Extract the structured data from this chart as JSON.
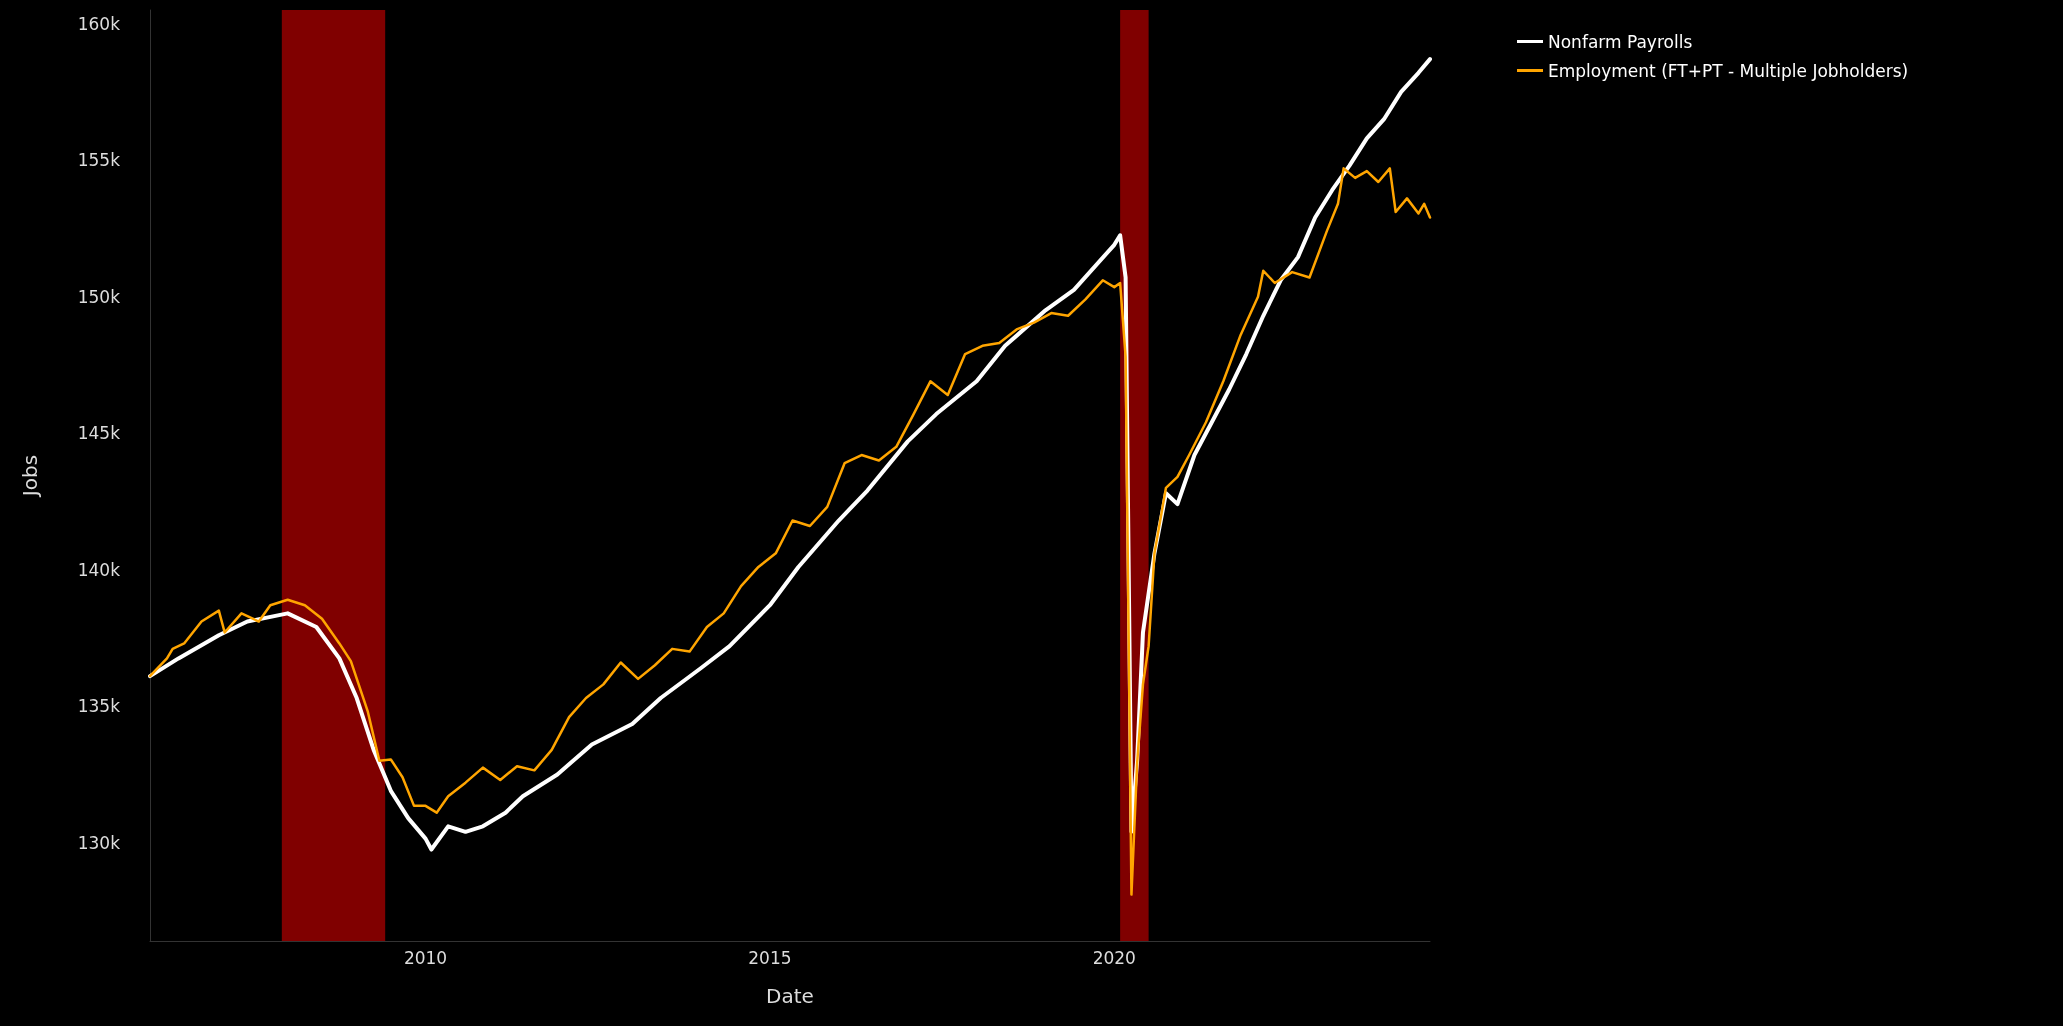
{
  "chart_data": {
    "type": "line",
    "xlabel": "Date",
    "ylabel": "Jobs",
    "xlim": [
      "2006-01",
      "2024-08"
    ],
    "xticks": [
      "2010",
      "2015",
      "2020"
    ],
    "ylim": [
      126400,
      160500
    ],
    "yticks": [
      {
        "value": 130000,
        "label": "130k"
      },
      {
        "value": 135000,
        "label": "135k"
      },
      {
        "value": 140000,
        "label": "140k"
      },
      {
        "value": 145000,
        "label": "145k"
      },
      {
        "value": 150000,
        "label": "150k"
      },
      {
        "value": 155000,
        "label": "155k"
      },
      {
        "value": 160000,
        "label": "160k"
      }
    ],
    "grid": false,
    "legend": "top right",
    "marker": "none",
    "line_style": "solid",
    "bands": [
      {
        "axis": "x",
        "from": "2007-12",
        "to": "2009-06",
        "color": "#800000"
      },
      {
        "axis": "x",
        "from": "2020-02",
        "to": "2020-07",
        "color": "#800000"
      }
    ],
    "series": [
      {
        "name": "Nonfarm Payrolls",
        "color": "#ffffff",
        "x": [
          "2006-01",
          "2006-06",
          "2007-01",
          "2007-06",
          "2008-01",
          "2008-06",
          "2008-10",
          "2009-01",
          "2009-04",
          "2009-07",
          "2009-10",
          "2010-01",
          "2010-02",
          "2010-05",
          "2010-08",
          "2010-11",
          "2011-03",
          "2011-06",
          "2011-12",
          "2012-06",
          "2013-01",
          "2013-06",
          "2014-01",
          "2014-06",
          "2015-01",
          "2015-06",
          "2016-01",
          "2016-06",
          "2017-01",
          "2017-06",
          "2018-01",
          "2018-06",
          "2019-01",
          "2019-06",
          "2020-01",
          "2020-02",
          "2020-03",
          "2020-04",
          "2020-05",
          "2020-06",
          "2020-08",
          "2020-10",
          "2020-12",
          "2021-03",
          "2021-06",
          "2021-09",
          "2021-12",
          "2022-03",
          "2022-06",
          "2022-09",
          "2022-12",
          "2023-03",
          "2023-06",
          "2023-09",
          "2023-12",
          "2024-03",
          "2024-06",
          "2024-08"
        ],
        "values": [
          136100,
          136750,
          137600,
          138100,
          138400,
          137900,
          136750,
          135300,
          133400,
          131900,
          130900,
          130150,
          129750,
          130600,
          130400,
          130600,
          131100,
          131700,
          132500,
          133600,
          134350,
          135300,
          136400,
          137200,
          138700,
          140100,
          141800,
          142900,
          144700,
          145700,
          146900,
          148200,
          149500,
          150250,
          151900,
          152250,
          150700,
          130400,
          133000,
          137700,
          140600,
          142800,
          142400,
          144200,
          145400,
          146600,
          147900,
          149300,
          150600,
          151450,
          152900,
          153900,
          154800,
          155800,
          156500,
          157500,
          158200,
          158700
        ]
      },
      {
        "name": "Employment (FT+PT - Multiple Jobholders)",
        "color": "#ffa500",
        "x": [
          "2006-01",
          "2006-04",
          "2006-05",
          "2006-07",
          "2006-10",
          "2007-01",
          "2007-02",
          "2007-05",
          "2007-08",
          "2007-10",
          "2008-01",
          "2008-04",
          "2008-07",
          "2008-10",
          "2008-12",
          "2009-03",
          "2009-05",
          "2009-07",
          "2009-09",
          "2009-11",
          "2010-01",
          "2010-03",
          "2010-05",
          "2010-08",
          "2010-11",
          "2011-02",
          "2011-05",
          "2011-08",
          "2011-11",
          "2012-02",
          "2012-05",
          "2012-08",
          "2012-11",
          "2013-02",
          "2013-05",
          "2013-08",
          "2013-11",
          "2014-02",
          "2014-05",
          "2014-08",
          "2014-11",
          "2015-02",
          "2015-05",
          "2015-08",
          "2015-11",
          "2016-02",
          "2016-05",
          "2016-08",
          "2016-11",
          "2017-02",
          "2017-05",
          "2017-08",
          "2017-11",
          "2018-02",
          "2018-05",
          "2018-08",
          "2018-11",
          "2019-02",
          "2019-05",
          "2019-08",
          "2019-11",
          "2020-01",
          "2020-02",
          "2020-03",
          "2020-04",
          "2020-05",
          "2020-06",
          "2020-07",
          "2020-08",
          "2020-10",
          "2020-12",
          "2021-02",
          "2021-05",
          "2021-08",
          "2021-11",
          "2022-02",
          "2022-03",
          "2022-05",
          "2022-08",
          "2022-11",
          "2023-02",
          "2023-04",
          "2023-05",
          "2023-07",
          "2023-09",
          "2023-11",
          "2024-01",
          "2024-02",
          "2024-04",
          "2024-06",
          "2024-07",
          "2024-08"
        ],
        "values": [
          136100,
          136750,
          137100,
          137300,
          138100,
          138500,
          137700,
          138400,
          138100,
          138700,
          138900,
          138700,
          138200,
          137300,
          136650,
          134800,
          133000,
          133050,
          132400,
          131350,
          131350,
          131100,
          131700,
          132200,
          132750,
          132300,
          132800,
          132650,
          133400,
          134600,
          135300,
          135800,
          136600,
          136000,
          136500,
          137100,
          137000,
          137900,
          138400,
          139400,
          140100,
          140600,
          141800,
          141600,
          142300,
          143900,
          144200,
          144000,
          144500,
          145700,
          146900,
          146400,
          147900,
          148200,
          148300,
          148800,
          149050,
          149400,
          149300,
          149900,
          150600,
          150350,
          150500,
          147800,
          128100,
          132900,
          135800,
          137200,
          140600,
          143000,
          143400,
          144200,
          145400,
          146900,
          148600,
          150000,
          150950,
          150500,
          150900,
          150700,
          152400,
          153400,
          154700,
          154350,
          154600,
          154200,
          154700,
          153100,
          153600,
          153050,
          153400,
          152900
        ]
      }
    ]
  }
}
